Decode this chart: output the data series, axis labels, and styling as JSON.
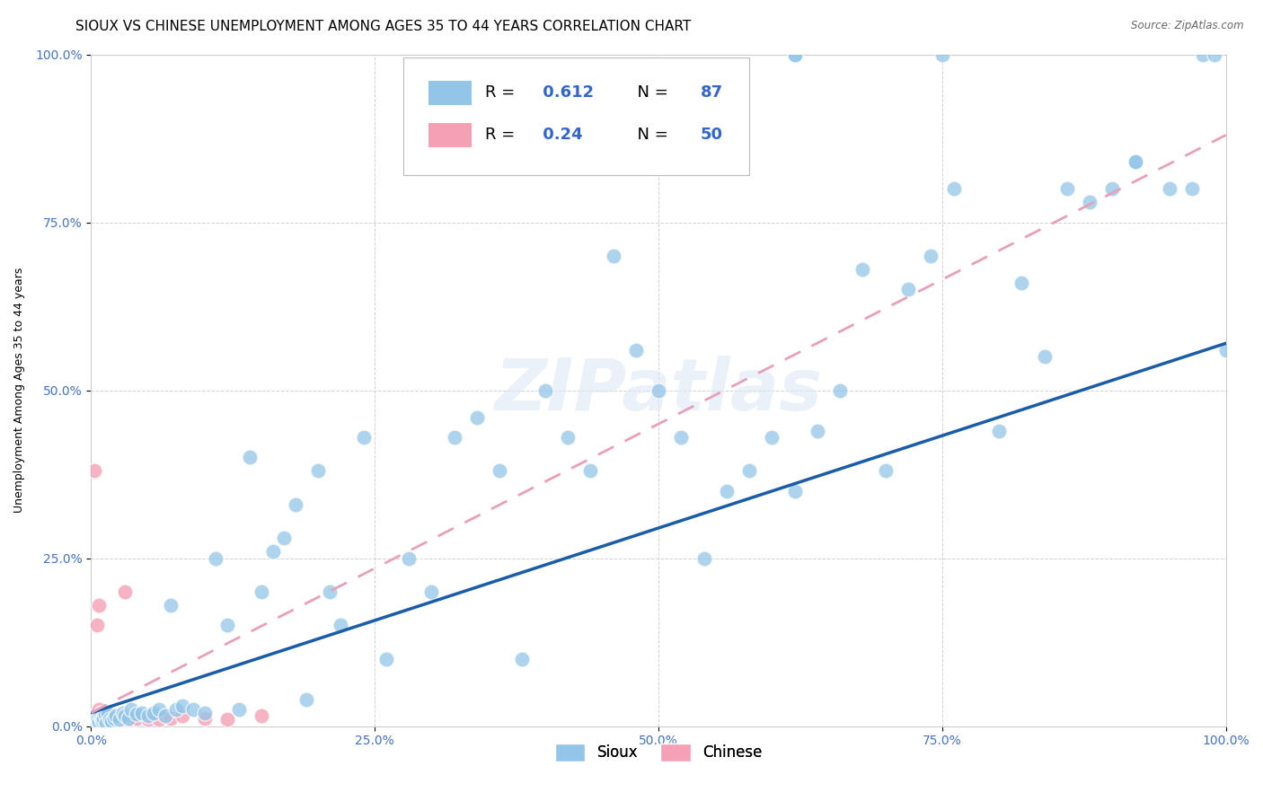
{
  "title": "SIOUX VS CHINESE UNEMPLOYMENT AMONG AGES 35 TO 44 YEARS CORRELATION CHART",
  "source": "Source: ZipAtlas.com",
  "ylabel": "Unemployment Among Ages 35 to 44 years",
  "sioux_R": 0.612,
  "sioux_N": 87,
  "chinese_R": 0.24,
  "chinese_N": 50,
  "sioux_color": "#92C5E8",
  "chinese_color": "#F4A0B5",
  "sioux_line_color": "#1A5CA8",
  "chinese_line_color": "#E8A0B8",
  "background_color": "#FFFFFF",
  "tick_color": "#4472C4",
  "xticklabels": [
    "0.0%",
    "25.0%",
    "50.0%",
    "75.0%",
    "100.0%"
  ],
  "yticklabels": [
    "0.0%",
    "25.0%",
    "50.0%",
    "75.0%",
    "100.0%"
  ],
  "title_fontsize": 11,
  "axis_label_fontsize": 9,
  "tick_fontsize": 10,
  "sioux_points_x": [
    0.003,
    0.004,
    0.005,
    0.006,
    0.007,
    0.008,
    0.009,
    0.01,
    0.011,
    0.012,
    0.013,
    0.015,
    0.016,
    0.018,
    0.02,
    0.022,
    0.025,
    0.028,
    0.03,
    0.033,
    0.035,
    0.04,
    0.045,
    0.05,
    0.055,
    0.06,
    0.065,
    0.07,
    0.075,
    0.08,
    0.09,
    0.1,
    0.11,
    0.12,
    0.13,
    0.14,
    0.15,
    0.16,
    0.17,
    0.18,
    0.19,
    0.2,
    0.21,
    0.22,
    0.24,
    0.26,
    0.28,
    0.3,
    0.32,
    0.34,
    0.36,
    0.38,
    0.4,
    0.42,
    0.44,
    0.46,
    0.48,
    0.5,
    0.52,
    0.54,
    0.56,
    0.58,
    0.6,
    0.62,
    0.64,
    0.66,
    0.68,
    0.7,
    0.72,
    0.74,
    0.76,
    0.8,
    0.82,
    0.84,
    0.86,
    0.88,
    0.9,
    0.92,
    0.95,
    0.97,
    0.98,
    0.99,
    1.0,
    0.62,
    0.62,
    0.75,
    0.92
  ],
  "sioux_points_y": [
    0.005,
    0.008,
    0.01,
    0.012,
    0.006,
    0.015,
    0.01,
    0.008,
    0.012,
    0.018,
    0.005,
    0.02,
    0.01,
    0.008,
    0.012,
    0.015,
    0.01,
    0.02,
    0.015,
    0.012,
    0.025,
    0.018,
    0.02,
    0.015,
    0.02,
    0.025,
    0.015,
    0.18,
    0.025,
    0.03,
    0.025,
    0.02,
    0.25,
    0.15,
    0.025,
    0.4,
    0.2,
    0.26,
    0.28,
    0.33,
    0.04,
    0.38,
    0.2,
    0.15,
    0.43,
    0.1,
    0.25,
    0.2,
    0.43,
    0.46,
    0.38,
    0.1,
    0.5,
    0.43,
    0.38,
    0.7,
    0.56,
    0.5,
    0.43,
    0.25,
    0.35,
    0.38,
    0.43,
    0.35,
    0.44,
    0.5,
    0.68,
    0.38,
    0.65,
    0.7,
    0.8,
    0.44,
    0.66,
    0.55,
    0.8,
    0.78,
    0.8,
    0.84,
    0.8,
    0.8,
    1.0,
    1.0,
    0.56,
    1.0,
    1.0,
    1.0,
    0.84
  ],
  "chinese_points_x": [
    0.001,
    0.002,
    0.002,
    0.003,
    0.003,
    0.003,
    0.004,
    0.004,
    0.005,
    0.005,
    0.005,
    0.006,
    0.006,
    0.006,
    0.007,
    0.007,
    0.007,
    0.008,
    0.008,
    0.008,
    0.009,
    0.009,
    0.01,
    0.01,
    0.01,
    0.011,
    0.011,
    0.012,
    0.013,
    0.014,
    0.015,
    0.016,
    0.018,
    0.02,
    0.022,
    0.025,
    0.03,
    0.035,
    0.04,
    0.05,
    0.06,
    0.07,
    0.08,
    0.1,
    0.12,
    0.15,
    0.003,
    0.005,
    0.007,
    0.03
  ],
  "chinese_points_y": [
    0.003,
    0.005,
    0.008,
    0.003,
    0.006,
    0.01,
    0.005,
    0.012,
    0.004,
    0.008,
    0.015,
    0.005,
    0.01,
    0.02,
    0.006,
    0.012,
    0.025,
    0.008,
    0.015,
    0.02,
    0.008,
    0.015,
    0.005,
    0.012,
    0.02,
    0.008,
    0.015,
    0.01,
    0.008,
    0.012,
    0.01,
    0.012,
    0.008,
    0.01,
    0.012,
    0.01,
    0.012,
    0.01,
    0.012,
    0.01,
    0.01,
    0.012,
    0.015,
    0.012,
    0.01,
    0.015,
    0.38,
    0.15,
    0.18,
    0.2
  ]
}
